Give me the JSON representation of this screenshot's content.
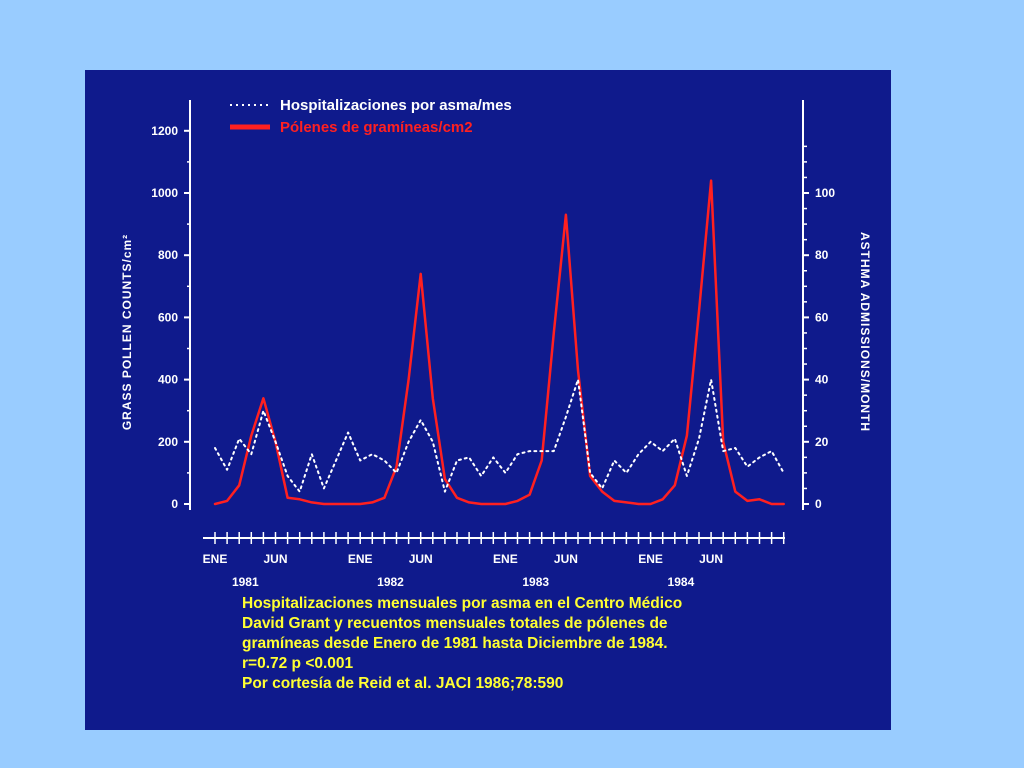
{
  "chart_data": {
    "type": "line",
    "legend": [
      {
        "label": "Hospitalizaciones por asma/mes",
        "style": "dotted",
        "color": "#ffffff"
      },
      {
        "label": "Pólenes de gramíneas/cm2",
        "style": "solid",
        "color": "#ff2020"
      }
    ],
    "legend_position": "top-left",
    "y_left_label": "GRASS POLLEN COUNTS/cm²",
    "y_right_label": "ASTHMA ADMISSIONS/MONTH",
    "y_left_ticks": [
      "0",
      "200",
      "400",
      "600",
      "800",
      "1000",
      "1200"
    ],
    "y_right_ticks": [
      "0",
      "20",
      "40",
      "60",
      "80",
      "100"
    ],
    "y_left_range": [
      0,
      1200
    ],
    "y_right_range": [
      0,
      120
    ],
    "month_labels": [
      "ENE",
      "JUN",
      "ENE",
      "JUN",
      "ENE",
      "JUN",
      "ENE",
      "JUN"
    ],
    "year_labels": [
      "1981",
      "1982",
      "1983",
      "1984"
    ],
    "x_months": 48,
    "series": [
      {
        "name": "Pólenes de gramíneas/cm2",
        "axis": "left",
        "color": "#ff2020",
        "values": [
          0,
          10,
          60,
          220,
          340,
          200,
          20,
          15,
          5,
          0,
          0,
          0,
          0,
          5,
          20,
          120,
          400,
          740,
          340,
          80,
          20,
          5,
          0,
          0,
          0,
          10,
          30,
          140,
          550,
          930,
          430,
          90,
          40,
          10,
          5,
          0,
          0,
          15,
          60,
          220,
          620,
          1040,
          200,
          40,
          10,
          15,
          0,
          0
        ]
      },
      {
        "name": "Hospitalizaciones por asma/mes",
        "axis": "right",
        "color": "#ffffff",
        "values": [
          18,
          11,
          21,
          16,
          30,
          20,
          9,
          4,
          16,
          5,
          14,
          23,
          14,
          16,
          14,
          10,
          20,
          27,
          20,
          4,
          14,
          15,
          9,
          15,
          10,
          16,
          17,
          17,
          17,
          28,
          40,
          10,
          5,
          14,
          10,
          16,
          20,
          17,
          21,
          9,
          21,
          40,
          17,
          18,
          12,
          15,
          17,
          10
        ]
      }
    ]
  },
  "caption": {
    "line1": "Hospitalizaciones mensuales por asma en el Centro Médico",
    "line2": "David Grant y recuentos mensuales totales de pólenes de",
    "line3": "gramíneas desde Enero de 1981 hasta Diciembre de 1984.",
    "line4": "r=0.72 p <0.001",
    "line5": "Por cortesía de Reid et al. JACI 1986;78:590"
  }
}
